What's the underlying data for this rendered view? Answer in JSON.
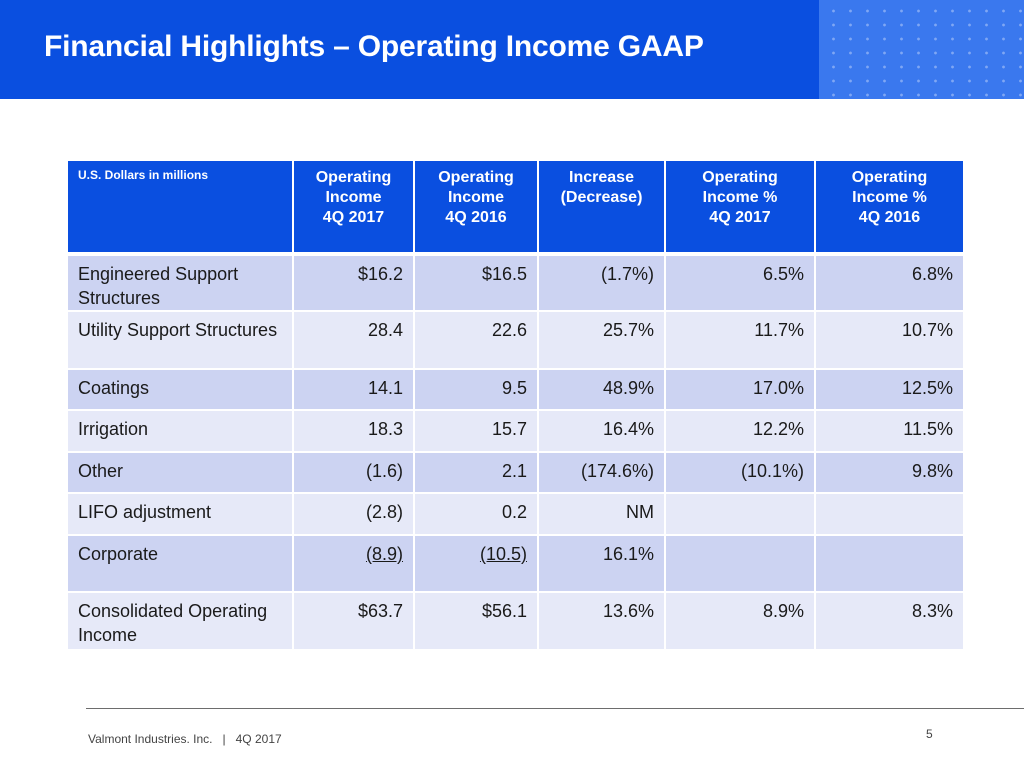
{
  "header": {
    "title": "Financial Highlights – Operating Income GAAP",
    "background_color": "#0a4fe0"
  },
  "table": {
    "units_label": "U.S. Dollars in millions",
    "columns": [
      {
        "lines": [
          "Operating",
          "Income",
          "4Q 2017"
        ]
      },
      {
        "lines": [
          "Operating",
          "Income",
          "4Q 2016"
        ]
      },
      {
        "lines": [
          "Increase",
          "(Decrease)"
        ]
      },
      {
        "lines": [
          "Operating",
          "Income %",
          "4Q 2017"
        ]
      },
      {
        "lines": [
          "Operating",
          "Income %",
          "4Q 2016"
        ]
      }
    ],
    "rows": [
      {
        "label": "Engineered Support Structures",
        "values": [
          "$16.2",
          "$16.5",
          "(1.7%)",
          "6.5%",
          "6.8%"
        ]
      },
      {
        "label": "Utility Support Structures",
        "values": [
          "28.4",
          "22.6",
          "25.7%",
          "11.7%",
          "10.7%"
        ]
      },
      {
        "label": "Coatings",
        "values": [
          "14.1",
          "9.5",
          "48.9%",
          "17.0%",
          "12.5%"
        ]
      },
      {
        "label": "Irrigation",
        "values": [
          "18.3",
          "15.7",
          "16.4%",
          "12.2%",
          "11.5%"
        ]
      },
      {
        "label": "Other",
        "values": [
          "(1.6)",
          "2.1",
          "(174.6%)",
          "(10.1%)",
          "9.8%"
        ]
      },
      {
        "label": "LIFO adjustment",
        "values": [
          "(2.8)",
          "0.2",
          "NM",
          "",
          ""
        ]
      },
      {
        "label": "Corporate",
        "values": [
          "(8.9)",
          "(10.5)",
          "16.1%",
          "",
          ""
        ]
      },
      {
        "label": "Consolidated Operating Income",
        "values": [
          "$63.7",
          "$56.1",
          "13.6%",
          "8.9%",
          "8.3%"
        ]
      }
    ],
    "colors": {
      "header": "#0a4fe0",
      "row_dark": "#ccd3f2",
      "row_light": "#e6e9f8"
    }
  },
  "footer": {
    "company": "Valmont Industries. Inc.",
    "separator": "|",
    "period": "4Q 2017",
    "page_number": "5"
  }
}
